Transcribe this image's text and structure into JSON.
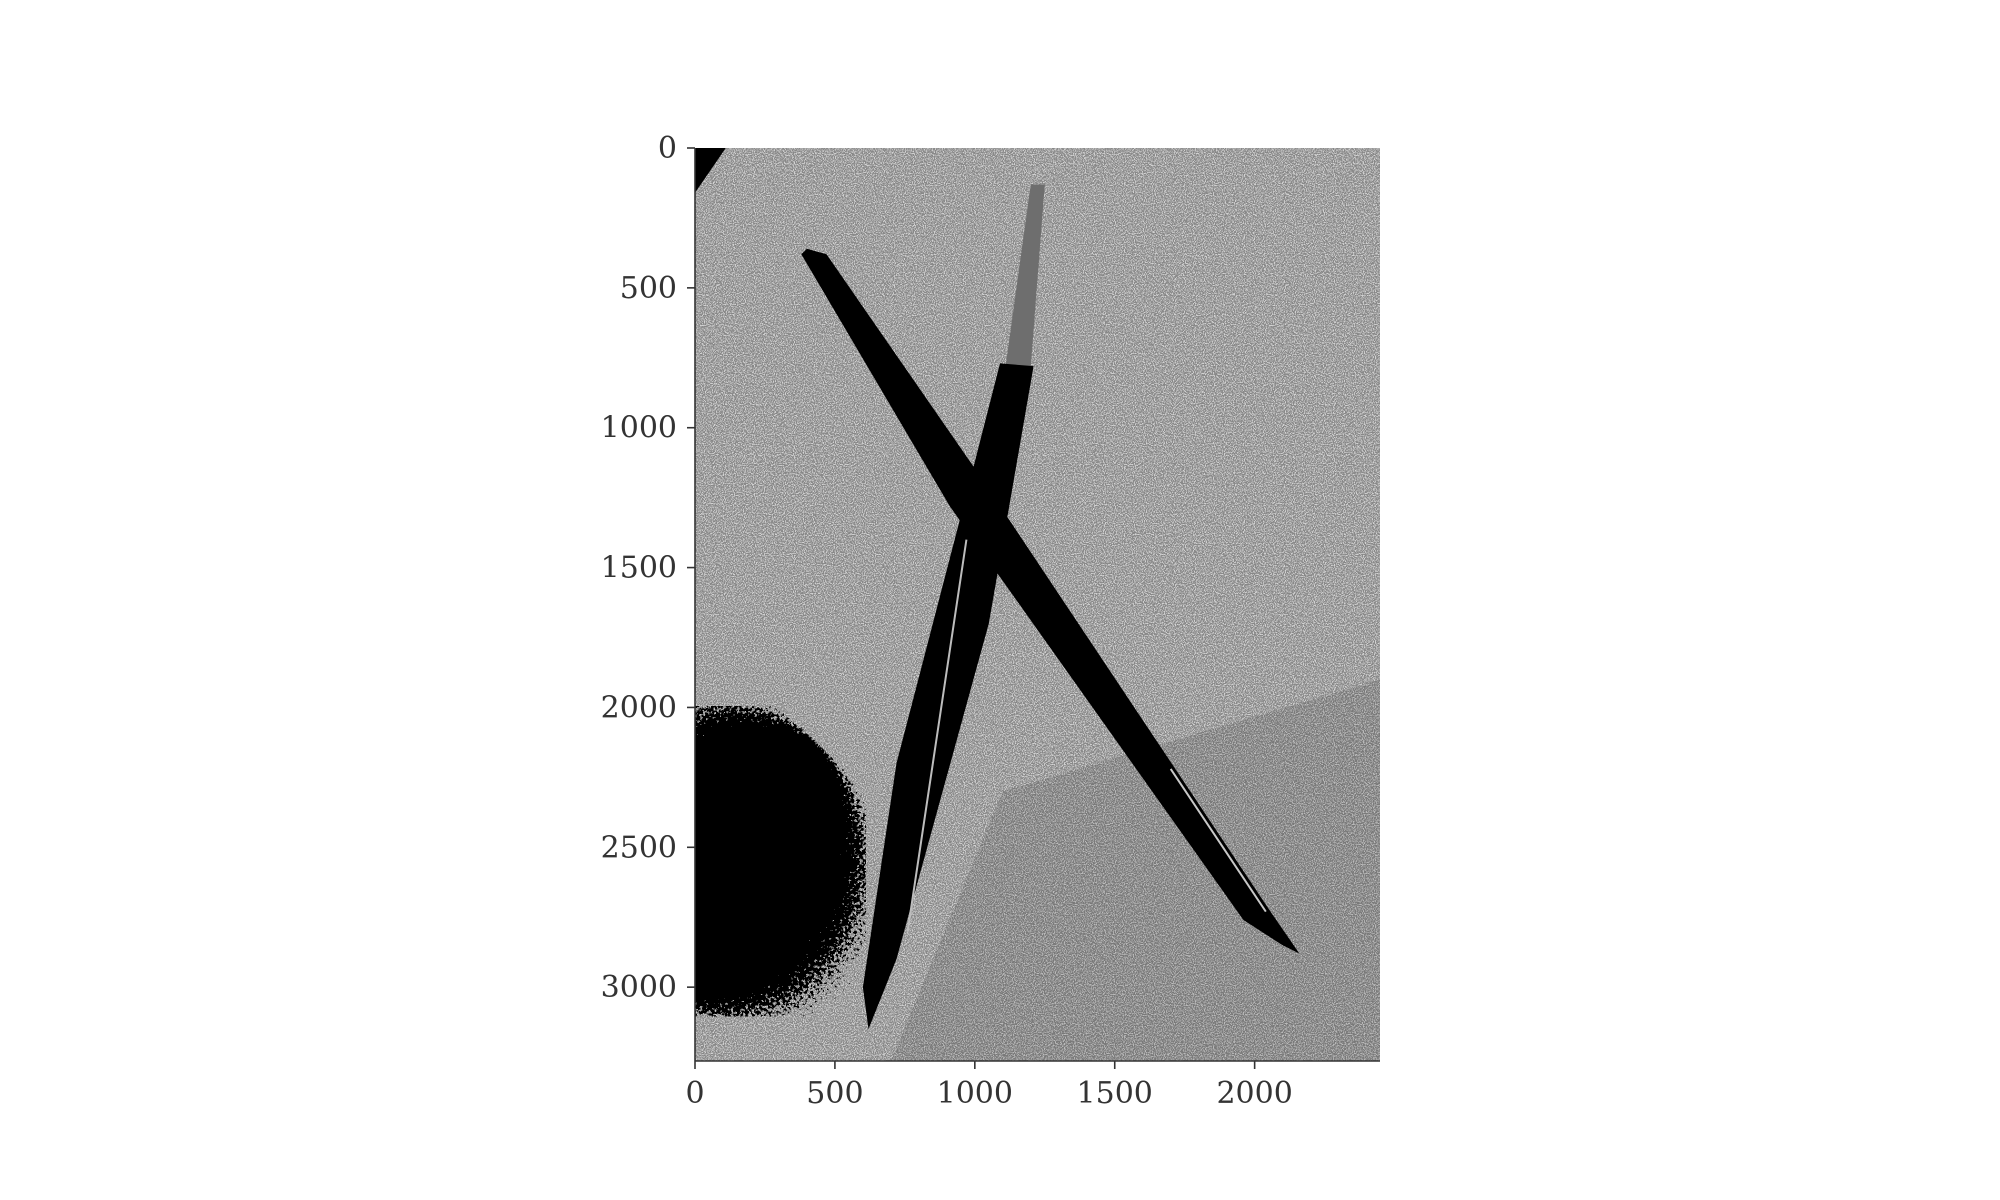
{
  "chart_data": {
    "type": "image",
    "title": "",
    "xlabel": "",
    "ylabel": "",
    "image_width": 2448,
    "image_height": 3264,
    "xlim": [
      0,
      2448
    ],
    "ylim": [
      3264,
      0
    ],
    "x_ticks": [
      0,
      500,
      1000,
      1500,
      2000
    ],
    "x_tick_labels": [
      "0",
      "500",
      "1000",
      "1500",
      "2000"
    ],
    "y_ticks": [
      0,
      500,
      1000,
      1500,
      2000,
      2500,
      3000
    ],
    "y_tick_labels": [
      "0",
      "500",
      "1000",
      "1500",
      "2000",
      "2500",
      "3000"
    ],
    "image_content": "grayscale photo of two crossed pens on a light surface",
    "colors": {
      "background": "#ffffff",
      "photo_light": "#d2d2d2",
      "photo_mid": "#a8a8a8",
      "pen": "#000000",
      "pen_cap": "#6e6e6e",
      "axis": "#333333"
    }
  }
}
